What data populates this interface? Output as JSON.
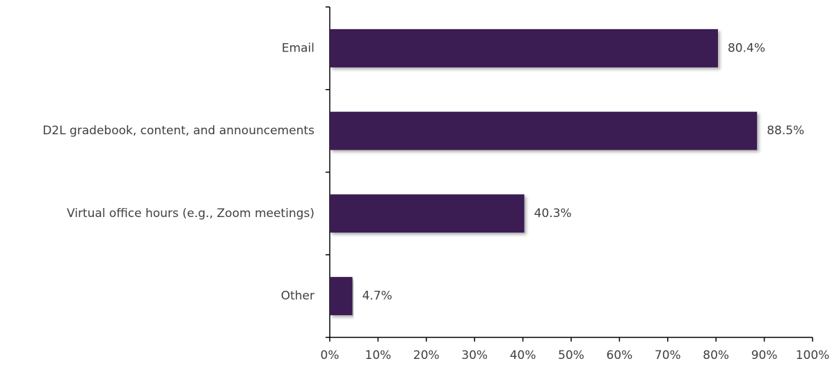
{
  "chart_data": {
    "type": "bar",
    "orientation": "horizontal",
    "categories": [
      "Email",
      "D2L gradebook, content, and announcements",
      "Virtual office hours (e.g., Zoom meetings)",
      "Other"
    ],
    "values": [
      80.4,
      88.5,
      40.3,
      4.7
    ],
    "value_labels": [
      "80.4%",
      "88.5%",
      "40.3%",
      "4.7%"
    ],
    "color": "#3b1a52",
    "xlim": [
      0,
      100
    ],
    "xticks": [
      {
        "value": 0,
        "label": "0%"
      },
      {
        "value": 10,
        "label": "10%"
      },
      {
        "value": 20,
        "label": "20%"
      },
      {
        "value": 30,
        "label": "30%"
      },
      {
        "value": 40,
        "label": "40%"
      },
      {
        "value": 50,
        "label": "50%"
      },
      {
        "value": 60,
        "label": "60%"
      },
      {
        "value": 70,
        "label": "70%"
      },
      {
        "value": 80,
        "label": "80%"
      },
      {
        "value": 90,
        "label": "90%"
      },
      {
        "value": 100,
        "label": "100%"
      }
    ],
    "grid": false
  }
}
